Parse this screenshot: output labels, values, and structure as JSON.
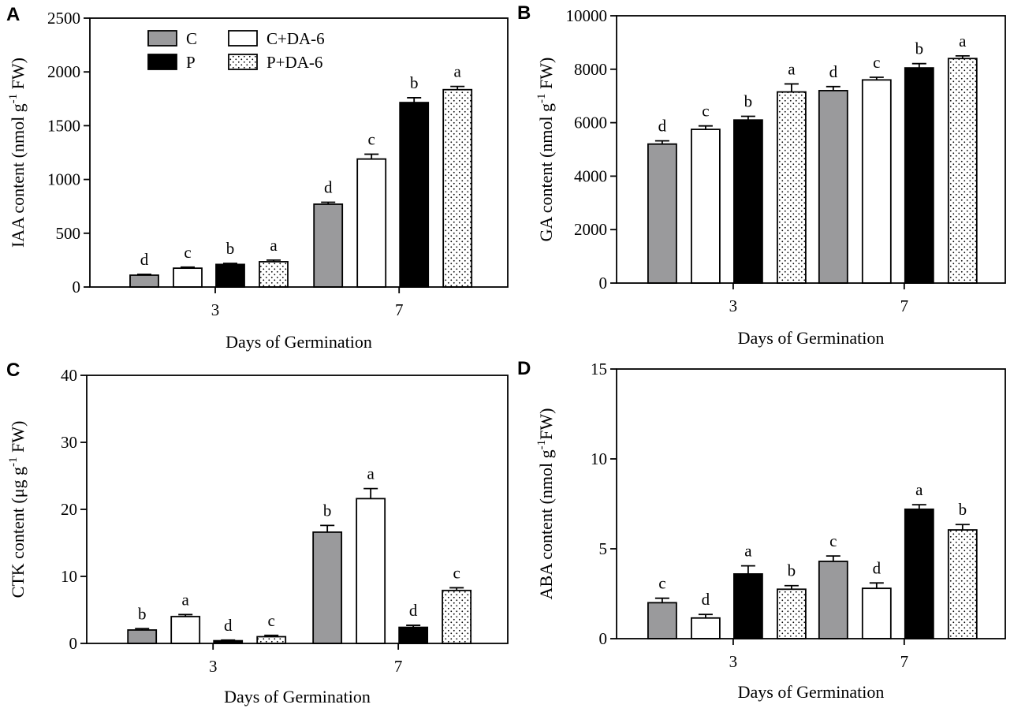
{
  "colors": {
    "C": "#9a9a9c",
    "P": "#000000",
    "C+DA-6": "#ffffff",
    "P+DA-6": "dots"
  },
  "legend": [
    "C",
    "P",
    "C+DA-6",
    "P+DA-6"
  ],
  "chart_data": [
    {
      "panel": "A",
      "type": "bar",
      "categories": [
        "3",
        "7"
      ],
      "xlabel": "Days of Germination",
      "ylabel": "IAA content (nmol g-1 FW)",
      "ylabel_parts": [
        "IAA content (nmol g",
        "-1",
        " FW)"
      ],
      "ylim": [
        0,
        2500
      ],
      "yticks": [
        "0",
        "500",
        "1000",
        "1500",
        "2000",
        "2500"
      ],
      "series": [
        {
          "name": "C",
          "values": [
            110,
            770
          ],
          "errors": [
            8,
            18
          ],
          "labels": [
            "d",
            "d"
          ]
        },
        {
          "name": "C+DA-6",
          "values": [
            175,
            1190
          ],
          "errors": [
            10,
            45
          ],
          "labels": [
            "c",
            "c"
          ]
        },
        {
          "name": "P",
          "values": [
            210,
            1715
          ],
          "errors": [
            10,
            45
          ],
          "labels": [
            "b",
            "b"
          ]
        },
        {
          "name": "P+DA-6",
          "values": [
            235,
            1835
          ],
          "errors": [
            15,
            30
          ],
          "labels": [
            "a",
            "a"
          ]
        }
      ]
    },
    {
      "panel": "B",
      "type": "bar",
      "categories": [
        "3",
        "7"
      ],
      "xlabel": "Days of Germination",
      "ylabel": "GA content (nmol g-1 FW)",
      "ylabel_parts": [
        "GA content (nmol g",
        "-1",
        " FW)"
      ],
      "ylim": [
        0,
        10000
      ],
      "yticks": [
        "0",
        "2000",
        "4000",
        "6000",
        "8000",
        "10000"
      ],
      "series": [
        {
          "name": "C",
          "values": [
            5200,
            7200
          ],
          "errors": [
            120,
            150
          ],
          "labels": [
            "d",
            "d"
          ]
        },
        {
          "name": "C+DA-6",
          "values": [
            5750,
            7600
          ],
          "errors": [
            130,
            100
          ],
          "labels": [
            "c",
            "c"
          ]
        },
        {
          "name": "P",
          "values": [
            6100,
            8050
          ],
          "errors": [
            140,
            160
          ],
          "labels": [
            "b",
            "b"
          ]
        },
        {
          "name": "P+DA-6",
          "values": [
            7150,
            8400
          ],
          "errors": [
            300,
            100
          ],
          "labels": [
            "a",
            "a"
          ]
        }
      ]
    },
    {
      "panel": "C",
      "type": "bar",
      "categories": [
        "3",
        "7"
      ],
      "xlabel": "Days of Germination",
      "ylabel": "CTK content (μg g-1 FW)",
      "ylabel_parts": [
        "CTK content (μg g",
        "-1",
        " FW)"
      ],
      "ylim": [
        0,
        40
      ],
      "yticks": [
        "0",
        "10",
        "20",
        "30",
        "40"
      ],
      "series": [
        {
          "name": "C",
          "values": [
            2.0,
            16.6
          ],
          "errors": [
            0.2,
            1.0
          ],
          "labels": [
            "b",
            "b"
          ]
        },
        {
          "name": "C+DA-6",
          "values": [
            4.0,
            21.6
          ],
          "errors": [
            0.3,
            1.5
          ],
          "labels": [
            "a",
            "a"
          ]
        },
        {
          "name": "P",
          "values": [
            0.4,
            2.4
          ],
          "errors": [
            0.1,
            0.3
          ],
          "labels": [
            "d",
            "d"
          ]
        },
        {
          "name": "P+DA-6",
          "values": [
            1.0,
            7.9
          ],
          "errors": [
            0.2,
            0.4
          ],
          "labels": [
            "c",
            "c"
          ]
        }
      ]
    },
    {
      "panel": "D",
      "type": "bar",
      "categories": [
        "3",
        "7"
      ],
      "xlabel": "Days of Germination",
      "ylabel": "ABA content (nmol g-1FW)",
      "ylabel_parts": [
        "ABA content (nmol g",
        "-1",
        "FW)"
      ],
      "ylim": [
        0,
        15
      ],
      "yticks": [
        "0",
        "5",
        "10",
        "15"
      ],
      "series": [
        {
          "name": "C",
          "values": [
            2.0,
            4.3
          ],
          "errors": [
            0.25,
            0.3
          ],
          "labels": [
            "c",
            "c"
          ]
        },
        {
          "name": "C+DA-6",
          "values": [
            1.15,
            2.8
          ],
          "errors": [
            0.2,
            0.3
          ],
          "labels": [
            "d",
            "d"
          ]
        },
        {
          "name": "P",
          "values": [
            3.6,
            7.2
          ],
          "errors": [
            0.45,
            0.25
          ],
          "labels": [
            "a",
            "a"
          ]
        },
        {
          "name": "P+DA-6",
          "values": [
            2.75,
            6.05
          ],
          "errors": [
            0.2,
            0.3
          ],
          "labels": [
            "b",
            "b"
          ]
        }
      ]
    }
  ]
}
